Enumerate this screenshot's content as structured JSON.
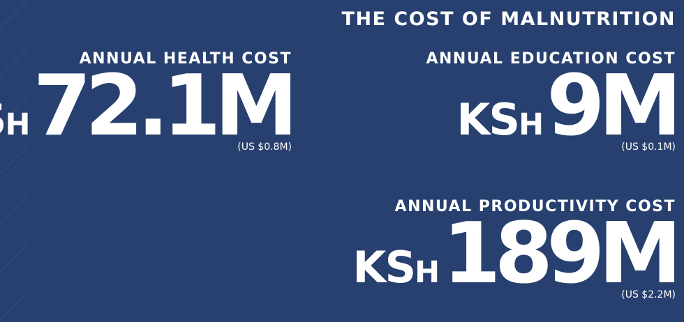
{
  "title": "THE COST OF MALNUTRITION",
  "costs": [
    {
      "label": "ANNUAL HEALTH COST",
      "currency": "KSh",
      "amount": "72.1M",
      "usd": "(US $0.8M)"
    },
    {
      "label": "ANNUAL EDUCATION COST",
      "currency": "KSh",
      "amount": "9M",
      "usd": "(US $0.1M)"
    },
    {
      "label": "ANNUAL PRODUCTIVITY COST",
      "currency": "KSh",
      "amount": "189M",
      "usd": "(US $2.2M)"
    }
  ]
}
